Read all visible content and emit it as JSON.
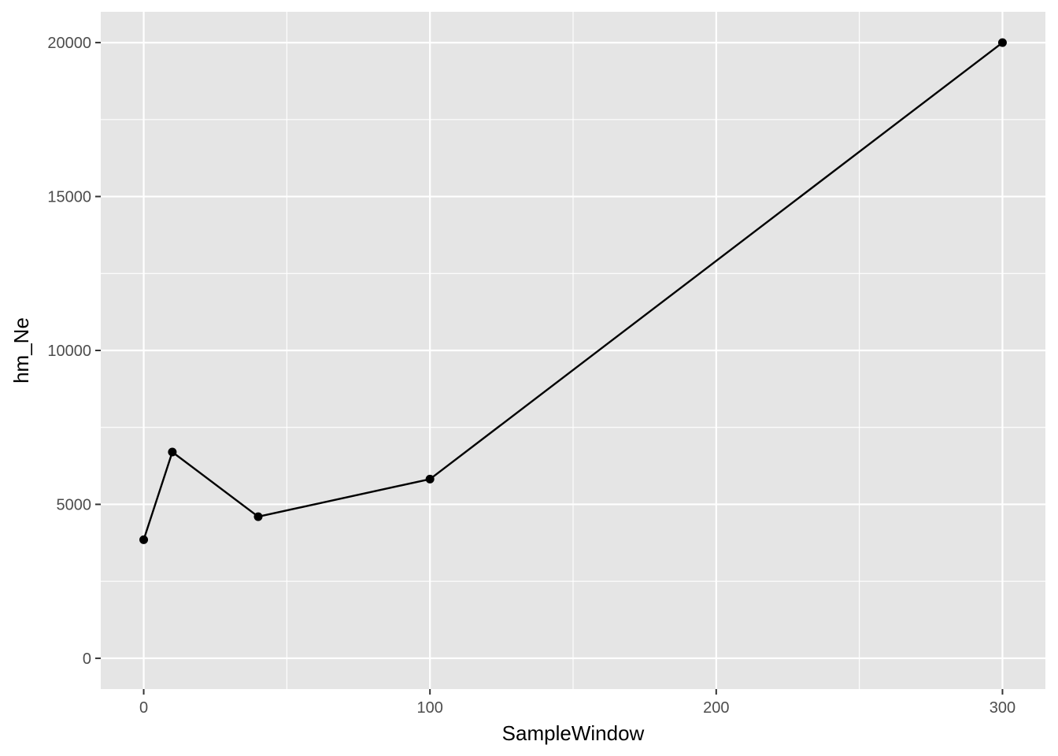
{
  "chart_data": {
    "type": "line",
    "xlabel": "SampleWindow",
    "ylabel": "hm_Ne",
    "x": [
      0,
      10,
      40,
      100,
      300
    ],
    "series": [
      {
        "values": [
          3850,
          6700,
          4600,
          5820,
          20000
        ]
      }
    ],
    "xlim": [
      -15,
      315
    ],
    "ylim": [
      -1000,
      21000
    ],
    "x_ticks": [
      0,
      100,
      200,
      300
    ],
    "x_tick_labels": [
      "0",
      "100",
      "200",
      "300"
    ],
    "x_minor_ticks": [
      50,
      150,
      250
    ],
    "y_ticks": [
      0,
      5000,
      10000,
      15000,
      20000
    ],
    "y_tick_labels": [
      "0",
      "5000",
      "10000",
      "15000",
      "20000"
    ],
    "y_minor_ticks": [
      2500,
      7500,
      12500,
      17500
    ],
    "grid": true,
    "show_points": true,
    "colors": {
      "panel_background": "#e5e5e5",
      "grid": "#ffffff",
      "line": "#000000",
      "point": "#000000",
      "tick_text": "#4d4d4d",
      "tick_mark": "#333333"
    }
  }
}
